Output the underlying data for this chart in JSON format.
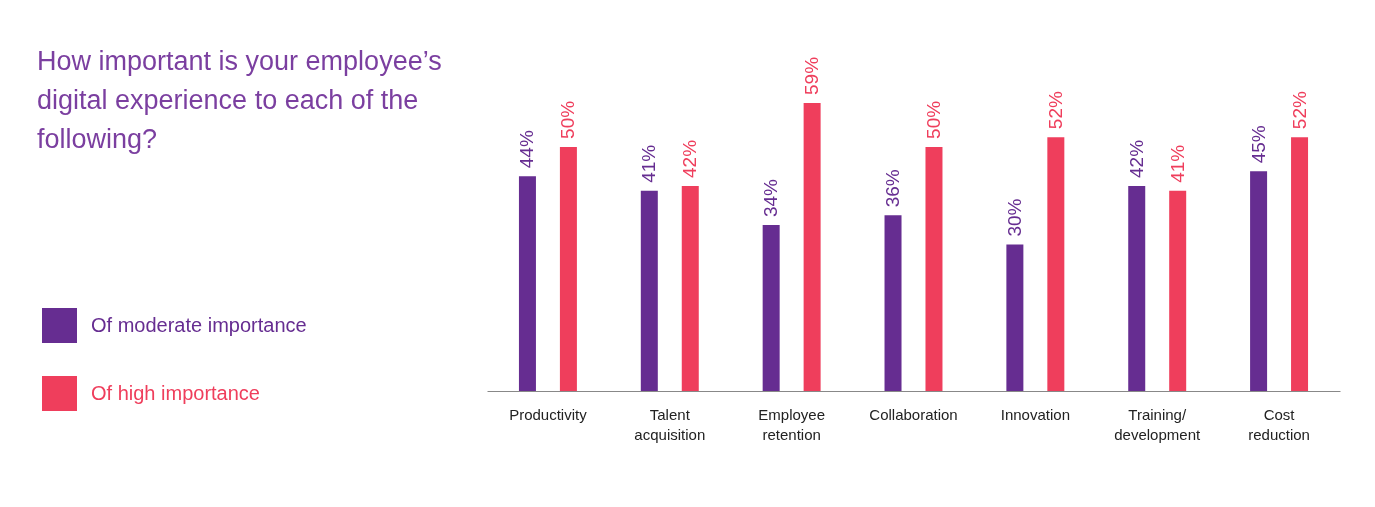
{
  "chart_data": {
    "type": "bar",
    "title": "How important is your employee’s digital experience to each of the following?",
    "categories": [
      "Productivity",
      "Talent acquisition",
      "Employee retention",
      "Collaboration",
      "Innovation",
      "Training/ development",
      "Cost reduction"
    ],
    "series": [
      {
        "name": "Of moderate importance",
        "color": "#662d91",
        "values": [
          44,
          41,
          34,
          36,
          30,
          42,
          45
        ],
        "value_labels": [
          "44%",
          "41%",
          "34%",
          "36%",
          "30%",
          "42%",
          "45%"
        ]
      },
      {
        "name": "Of high importance",
        "color": "#ef3e5c",
        "values": [
          50,
          42,
          59,
          50,
          52,
          41,
          52
        ],
        "value_labels": [
          "50%",
          "42%",
          "59%",
          "50%",
          "52%",
          "41%",
          "52%"
        ]
      }
    ],
    "legend": "left"
  }
}
